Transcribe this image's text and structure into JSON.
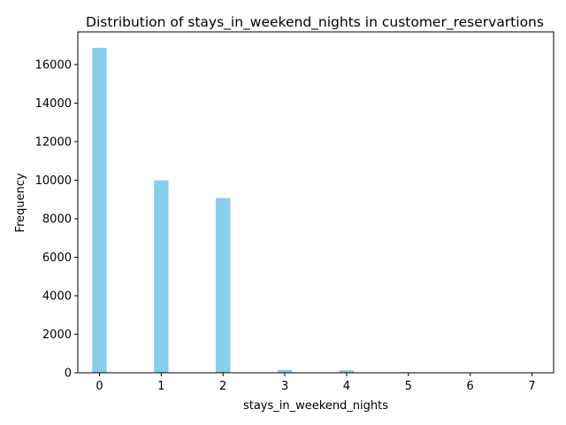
{
  "chart_data": {
    "type": "bar",
    "title": "Distribution of stays_in_weekend_nights in customer_reservartions",
    "xlabel": "stays_in_weekend_nights",
    "ylabel": "Frequency",
    "x": [
      0,
      1,
      2,
      3,
      4,
      5,
      6,
      7
    ],
    "values": [
      16870,
      9995,
      9070,
      150,
      130,
      30,
      20,
      10
    ],
    "xlim": [
      -0.35,
      7.35
    ],
    "ylim": [
      0,
      17700
    ],
    "xticks": [
      "0",
      "1",
      "2",
      "3",
      "4",
      "5",
      "6",
      "7"
    ],
    "yticks": [
      "0",
      "2000",
      "4000",
      "6000",
      "8000",
      "10000",
      "12000",
      "14000",
      "16000"
    ],
    "grid": false,
    "bar_color": "#87ceeb"
  }
}
